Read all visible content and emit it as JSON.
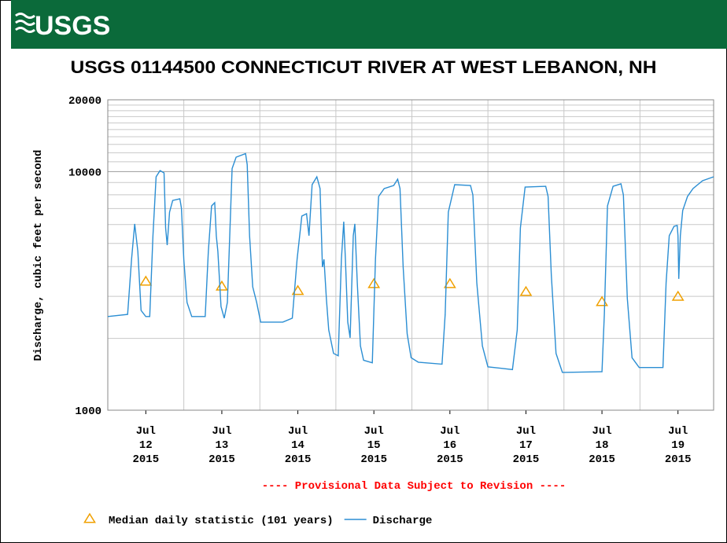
{
  "header": {
    "logo_text": "USGS"
  },
  "chart_data": {
    "type": "line",
    "title": "USGS 01144500 CONNECTICUT RIVER AT WEST LEBANON, NH",
    "ylabel": "Discharge, cubic feet per second",
    "annotation": "---- Provisional Data Subject to Revision ----",
    "yscale": "log",
    "ylim": [
      1000,
      20000
    ],
    "yticks": [
      1000,
      10000,
      20000
    ],
    "minor_yticks": [
      2000,
      3000,
      4000,
      5000,
      6000,
      7000,
      8000,
      9000,
      11000,
      12000,
      13000,
      14000,
      15000,
      16000,
      17000,
      18000,
      19000
    ],
    "xlim": [
      "2015-07-12T00:00",
      "2015-07-19T23:15"
    ],
    "xticks": [
      {
        "value": "2015-07-12T12:00",
        "label": [
          "Jul",
          "12",
          "2015"
        ]
      },
      {
        "value": "2015-07-13T12:00",
        "label": [
          "Jul",
          "13",
          "2015"
        ]
      },
      {
        "value": "2015-07-14T12:00",
        "label": [
          "Jul",
          "14",
          "2015"
        ]
      },
      {
        "value": "2015-07-15T12:00",
        "label": [
          "Jul",
          "15",
          "2015"
        ]
      },
      {
        "value": "2015-07-16T12:00",
        "label": [
          "Jul",
          "16",
          "2015"
        ]
      },
      {
        "value": "2015-07-17T12:00",
        "label": [
          "Jul",
          "17",
          "2015"
        ]
      },
      {
        "value": "2015-07-18T12:00",
        "label": [
          "Jul",
          "18",
          "2015"
        ]
      },
      {
        "value": "2015-07-19T12:00",
        "label": [
          "Jul",
          "19",
          "2015"
        ]
      }
    ],
    "grid": true,
    "series": [
      {
        "name": "Median daily statistic (101 years)",
        "color": "#f0a000",
        "style": "triangle",
        "x": [
          "2015-07-12T12:00",
          "2015-07-13T12:00",
          "2015-07-14T12:00",
          "2015-07-15T12:00",
          "2015-07-16T12:00",
          "2015-07-17T12:00",
          "2015-07-18T12:00",
          "2015-07-19T12:00"
        ],
        "values": [
          3470,
          3310,
          3170,
          3390,
          3390,
          3140,
          2850,
          3000
        ]
      },
      {
        "name": "Discharge",
        "color": "#2b8ed3",
        "style": "line",
        "x": [
          "2015-07-12T00:00",
          "2015-07-12T06:15",
          "2015-07-12T07:30",
          "2015-07-12T08:30",
          "2015-07-12T09:30",
          "2015-07-12T10:30",
          "2015-07-12T12:00",
          "2015-07-12T13:15",
          "2015-07-12T14:15",
          "2015-07-12T15:15",
          "2015-07-12T16:30",
          "2015-07-12T17:45",
          "2015-07-12T18:15",
          "2015-07-12T18:45",
          "2015-07-12T19:30",
          "2015-07-12T20:30",
          "2015-07-12T22:45",
          "2015-07-12T23:15",
          "2015-07-13T00:00",
          "2015-07-13T01:00",
          "2015-07-13T02:30",
          "2015-07-13T06:45",
          "2015-07-13T07:45",
          "2015-07-13T08:45",
          "2015-07-13T09:45",
          "2015-07-13T10:15",
          "2015-07-13T10:45",
          "2015-07-13T11:45",
          "2015-07-13T12:45",
          "2015-07-13T13:45",
          "2015-07-13T14:30",
          "2015-07-13T15:15",
          "2015-07-13T16:30",
          "2015-07-13T19:30",
          "2015-07-13T20:00",
          "2015-07-13T20:45",
          "2015-07-13T21:45",
          "2015-07-13T23:00",
          "2015-07-14T00:15",
          "2015-07-14T07:15",
          "2015-07-14T10:15",
          "2015-07-14T11:45",
          "2015-07-14T13:15",
          "2015-07-14T14:45",
          "2015-07-14T15:30",
          "2015-07-14T16:30",
          "2015-07-14T18:00",
          "2015-07-14T19:00",
          "2015-07-14T19:45",
          "2015-07-14T20:15",
          "2015-07-14T21:00",
          "2015-07-14T21:45",
          "2015-07-14T23:15",
          "2015-07-15T00:45",
          "2015-07-15T01:45",
          "2015-07-15T02:30",
          "2015-07-15T03:00",
          "2015-07-15T03:45",
          "2015-07-15T04:30",
          "2015-07-15T05:30",
          "2015-07-15T06:00",
          "2015-07-15T06:45",
          "2015-07-15T07:45",
          "2015-07-15T08:45",
          "2015-07-15T11:30",
          "2015-07-15T12:30",
          "2015-07-15T13:30",
          "2015-07-15T15:15",
          "2015-07-15T18:15",
          "2015-07-15T19:30",
          "2015-07-15T20:15",
          "2015-07-15T21:15",
          "2015-07-15T22:30",
          "2015-07-15T23:45",
          "2015-07-16T02:00",
          "2015-07-16T09:30",
          "2015-07-16T10:30",
          "2015-07-16T11:30",
          "2015-07-16T13:30",
          "2015-07-16T18:30",
          "2015-07-16T19:15",
          "2015-07-16T20:30",
          "2015-07-16T22:15",
          "2015-07-17T00:00",
          "2015-07-17T07:45",
          "2015-07-17T09:15",
          "2015-07-17T10:15",
          "2015-07-17T11:45",
          "2015-07-17T18:15",
          "2015-07-17T19:00",
          "2015-07-17T20:00",
          "2015-07-17T21:30",
          "2015-07-17T23:30",
          "2015-07-18T12:00",
          "2015-07-18T12:45",
          "2015-07-18T13:45",
          "2015-07-18T15:30",
          "2015-07-18T18:00",
          "2015-07-18T18:45",
          "2015-07-18T20:00",
          "2015-07-18T21:30",
          "2015-07-18T23:45",
          "2015-07-19T07:15",
          "2015-07-19T08:15",
          "2015-07-19T09:15",
          "2015-07-19T10:45",
          "2015-07-19T11:45",
          "2015-07-19T12:00",
          "2015-07-19T12:15",
          "2015-07-19T12:45",
          "2015-07-19T13:30",
          "2015-07-19T15:00",
          "2015-07-19T16:45",
          "2015-07-19T19:45",
          "2015-07-19T23:15"
        ],
        "values": [
          2470,
          2520,
          4290,
          6040,
          4630,
          2620,
          2470,
          2470,
          5390,
          9510,
          10100,
          9880,
          5810,
          4920,
          6760,
          7570,
          7690,
          7020,
          4290,
          2830,
          2470,
          2470,
          4630,
          7180,
          7410,
          5390,
          4630,
          2720,
          2430,
          2830,
          5390,
          10300,
          11500,
          11900,
          10700,
          5390,
          3290,
          2830,
          2340,
          2340,
          2430,
          4290,
          6510,
          6660,
          5390,
          8820,
          9510,
          8490,
          3980,
          4290,
          2940,
          2170,
          1730,
          1690,
          4290,
          6170,
          4290,
          2340,
          2010,
          5390,
          6040,
          3420,
          1860,
          1620,
          1580,
          4290,
          7870,
          8490,
          8750,
          9300,
          8490,
          3980,
          2090,
          1660,
          1590,
          1560,
          2520,
          6760,
          8820,
          8750,
          7990,
          3420,
          1860,
          1520,
          1480,
          2170,
          5810,
          8620,
          8680,
          7870,
          3690,
          1730,
          1440,
          1450,
          2520,
          7180,
          8680,
          8890,
          7990,
          2940,
          1660,
          1510,
          1510,
          3420,
          5390,
          5900,
          5950,
          5390,
          3550,
          5390,
          6870,
          7870,
          8490,
          9160,
          9510
        ]
      }
    ]
  }
}
